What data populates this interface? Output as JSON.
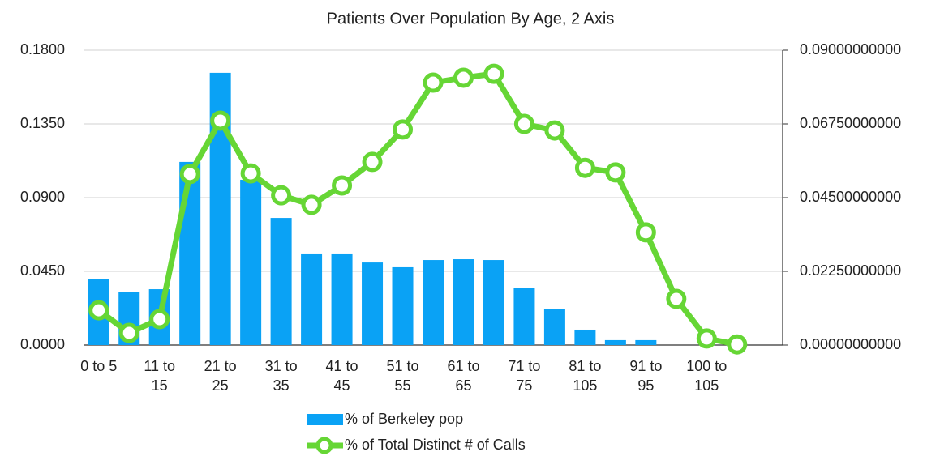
{
  "chart_data": {
    "type": "bar",
    "title": "Patients Over Population By Age, 2 Axis",
    "categories": [
      "0 to 5",
      null,
      "11 to 15",
      null,
      "21 to 25",
      null,
      "31 to 35",
      null,
      "41 to 45",
      null,
      "51 to 55",
      null,
      "61 to 65",
      null,
      "71 to 75",
      null,
      "81 to 105",
      null,
      "91 to 95",
      null,
      "100 to 105",
      null,
      null
    ],
    "series": [
      {
        "name": "% of Berkeley pop",
        "color": "#0aa2f5",
        "type": "bar",
        "values": [
          0.0401,
          0.0326,
          0.0341,
          0.1118,
          0.1662,
          0.1009,
          0.0776,
          0.0559,
          0.0559,
          0.0504,
          0.0475,
          0.0519,
          0.0524,
          0.0519,
          0.0351,
          0.0218,
          0.0094,
          0.003,
          0.003,
          0,
          0,
          0,
          null
        ]
      },
      {
        "name": "% of Total Distinct # of Calls",
        "color": "#66d635",
        "type": "line",
        "axis": "y2",
        "values": [
          0.0106,
          0.0037,
          0.0079,
          0.0522,
          0.0685,
          0.0524,
          0.0457,
          0.0428,
          0.0487,
          0.0559,
          0.0658,
          0.0801,
          0.0816,
          0.0828,
          0.0675,
          0.0655,
          0.0541,
          0.0527,
          0.0344,
          0.0141,
          0.002,
          0.0002,
          null
        ]
      }
    ],
    "ylim": [
      0,
      0.18
    ],
    "yticks": [
      {
        "value": 0,
        "label": "0.0000"
      },
      {
        "value": 0.045,
        "label": "0.0450"
      },
      {
        "value": 0.09,
        "label": "0.0900"
      },
      {
        "value": 0.135,
        "label": "0.1350"
      },
      {
        "value": 0.18,
        "label": "0.1800"
      }
    ],
    "y2lim": [
      0,
      0.09
    ],
    "y2ticks": [
      {
        "value": 0,
        "label": "0.00000000000"
      },
      {
        "value": 0.0225,
        "label": "0.02250000000"
      },
      {
        "value": 0.045,
        "label": "0.04500000000"
      },
      {
        "value": 0.0675,
        "label": "0.06750000000"
      },
      {
        "value": 0.09,
        "label": "0.09000000000"
      }
    ],
    "grid": true,
    "legend": "bottom"
  }
}
